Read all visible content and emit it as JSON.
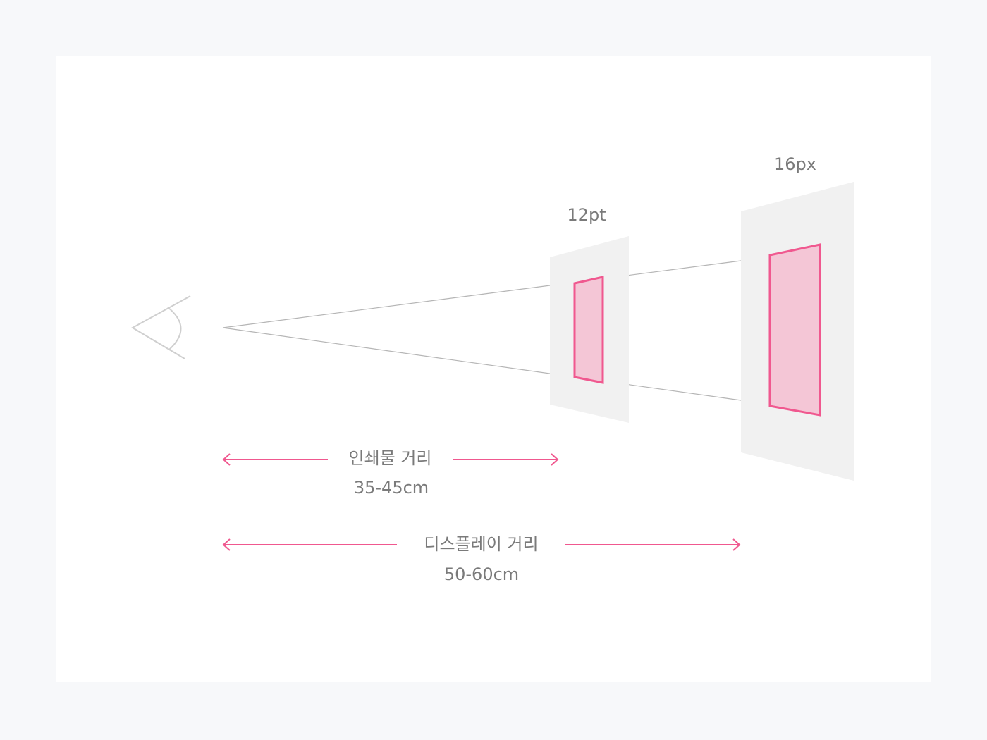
{
  "diagram": {
    "labels": {
      "print_size": "12pt",
      "display_size": "16px",
      "print_distance_title": "인쇄물 거리",
      "print_distance_value": "35-45cm",
      "display_distance_title": "디스플레이 거리",
      "display_distance_value": "50-60cm"
    },
    "colors": {
      "background": "#f7f8fa",
      "canvas": "#ffffff",
      "panel": "#f1f1f1",
      "accent": "#f0588f",
      "accent_fill": "#f4c6d6",
      "line": "#b5b5b5",
      "eye": "#cfcfcf",
      "text": "#7a7a7a"
    },
    "icons": {
      "eye": "eye-icon",
      "arrow_left": "arrow-left-icon",
      "arrow_right": "arrow-right-icon"
    }
  }
}
